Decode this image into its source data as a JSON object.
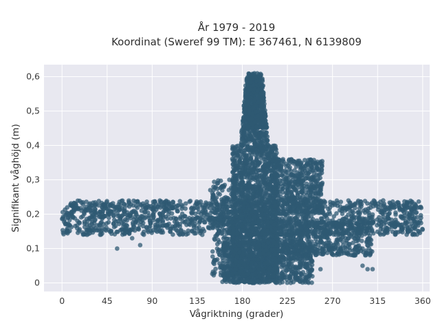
{
  "chart_data": {
    "type": "scatter",
    "title_line1": "År 1979 - 2019",
    "title_line2": "Koordinat (Sweref 99 TM): E 367461, N 6139809",
    "xlabel": "Vågriktning (grader)",
    "ylabel": "Signifikant våghöjd (m)",
    "xlim": [
      -18,
      367
    ],
    "ylim": [
      -0.025,
      0.635
    ],
    "xticks": [
      0,
      45,
      90,
      135,
      180,
      225,
      270,
      315,
      360
    ],
    "xtick_labels": [
      "0",
      "45",
      "90",
      "135",
      "180",
      "225",
      "270",
      "315",
      "360"
    ],
    "yticks": [
      0,
      0.1,
      0.2,
      0.3,
      0.4,
      0.5,
      0.6
    ],
    "ytick_labels": [
      "0",
      "0,1",
      "0,2",
      "0,3",
      "0,4",
      "0,5",
      "0,6"
    ],
    "grid": true,
    "marker_color": "#2f5a73",
    "background_color": "#e8e8f0",
    "clusters": [
      {
        "x_range": [
          0,
          360
        ],
        "y_range": [
          0.14,
          0.24
        ],
        "n": 1600
      },
      {
        "x_range": [
          170,
          215
        ],
        "y_range": [
          0.0,
          0.6
        ],
        "n": 2400
      },
      {
        "x_range": [
          180,
          205
        ],
        "y_range": [
          0.45,
          0.61
        ],
        "n": 500
      },
      {
        "x_range": [
          160,
          250
        ],
        "y_range": [
          0.0,
          0.12
        ],
        "n": 800
      },
      {
        "x_range": [
          200,
          310
        ],
        "y_range": [
          0.08,
          0.18
        ],
        "n": 600
      },
      {
        "x_range": [
          210,
          260
        ],
        "y_range": [
          0.2,
          0.36
        ],
        "n": 500
      },
      {
        "x_range": [
          150,
          175
        ],
        "y_range": [
          0.02,
          0.3
        ],
        "n": 250
      }
    ],
    "points": [
      {
        "x": 5,
        "y": 0.15
      },
      {
        "x": 12,
        "y": 0.22
      },
      {
        "x": 25,
        "y": 0.14
      },
      {
        "x": 40,
        "y": 0.16
      },
      {
        "x": 55,
        "y": 0.1
      },
      {
        "x": 70,
        "y": 0.13
      },
      {
        "x": 78,
        "y": 0.11
      },
      {
        "x": 95,
        "y": 0.17
      },
      {
        "x": 130,
        "y": 0.15
      },
      {
        "x": 140,
        "y": 0.14
      },
      {
        "x": 148,
        "y": 0.27
      },
      {
        "x": 155,
        "y": 0.29
      },
      {
        "x": 167,
        "y": 0.05
      },
      {
        "x": 165,
        "y": 0.03
      },
      {
        "x": 190,
        "y": 0.0
      },
      {
        "x": 195,
        "y": 0.005
      },
      {
        "x": 258,
        "y": 0.04
      },
      {
        "x": 300,
        "y": 0.05
      },
      {
        "x": 305,
        "y": 0.04
      },
      {
        "x": 310,
        "y": 0.04
      },
      {
        "x": 292,
        "y": 0.08
      },
      {
        "x": 240,
        "y": 0.33
      },
      {
        "x": 248,
        "y": 0.3
      },
      {
        "x": 345,
        "y": 0.16
      },
      {
        "x": 352,
        "y": 0.23
      },
      {
        "x": 357,
        "y": 0.22
      },
      {
        "x": 300,
        "y": 0.1
      },
      {
        "x": 280,
        "y": 0.12
      }
    ]
  }
}
